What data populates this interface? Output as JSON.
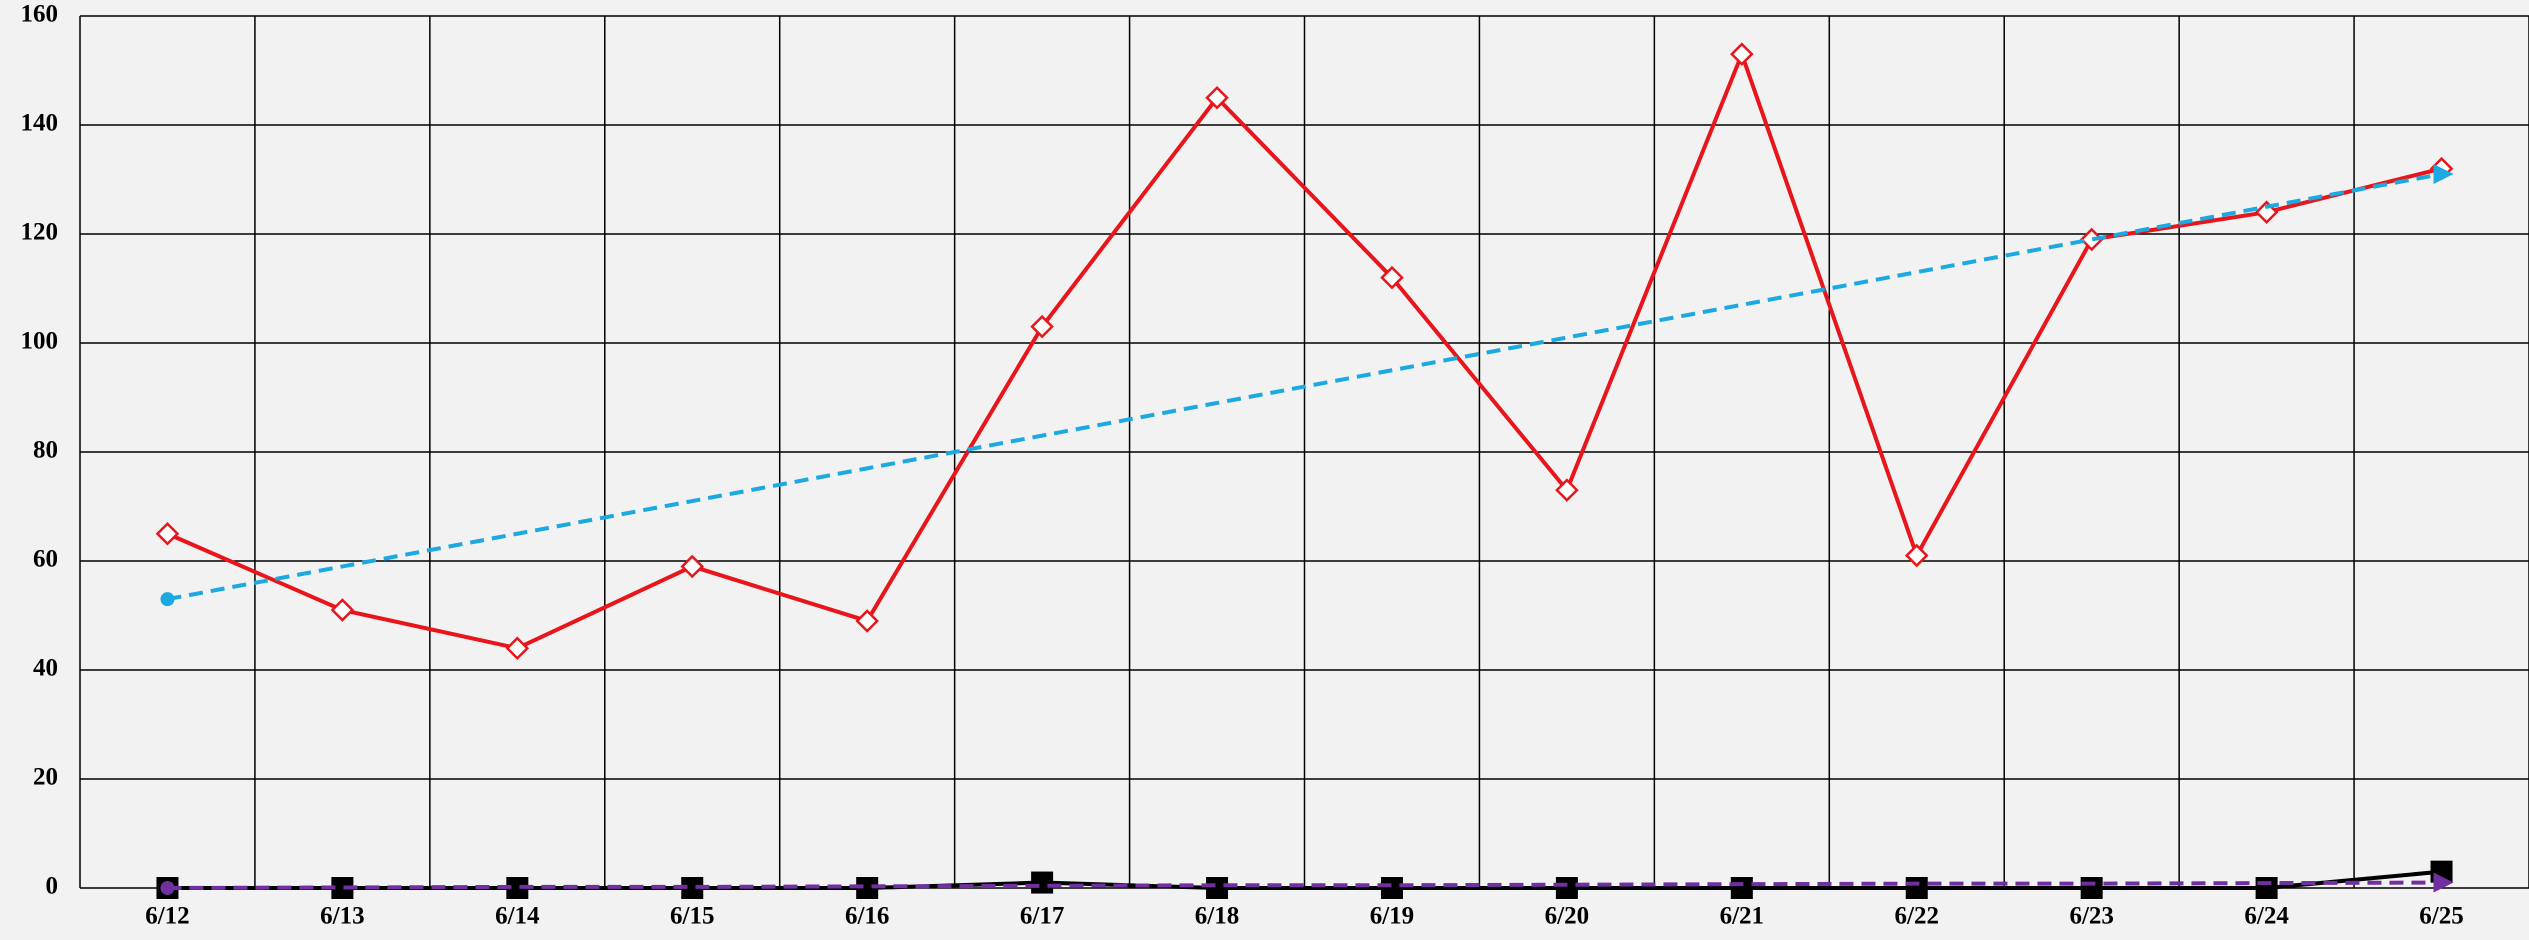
{
  "chart_data": {
    "type": "line",
    "categories": [
      "6/12",
      "6/13",
      "6/14",
      "6/15",
      "6/16",
      "6/17",
      "6/18",
      "6/19",
      "6/20",
      "6/21",
      "6/22",
      "6/23",
      "6/24",
      "6/25"
    ],
    "ylim": [
      0,
      160
    ],
    "yticks": [
      0,
      20,
      40,
      60,
      80,
      100,
      120,
      140,
      160
    ],
    "grid": true,
    "series": [
      {
        "color": "#e8151b",
        "marker": "diamond",
        "dash": false,
        "values": [
          65,
          51,
          44,
          59,
          49,
          103,
          145,
          112,
          73,
          153,
          61,
          119,
          124,
          132
        ]
      },
      {
        "color": "#1ca8e0",
        "marker": "trend",
        "dash": true,
        "values": [
          53,
          59,
          65,
          71,
          77,
          83,
          89,
          95,
          101,
          107,
          113,
          119,
          125,
          131
        ]
      },
      {
        "color": "#000000",
        "marker": "square",
        "dash": false,
        "values": [
          0,
          0,
          0,
          0,
          0,
          1,
          0,
          0,
          0,
          0,
          0,
          0,
          0,
          3
        ]
      },
      {
        "color": "#7030a0",
        "marker": "trend",
        "dash": true,
        "values": [
          0,
          0.1,
          0.2,
          0.2,
          0.3,
          0.4,
          0.5,
          0.5,
          0.6,
          0.7,
          0.8,
          0.8,
          0.9,
          1.0
        ]
      }
    ]
  }
}
